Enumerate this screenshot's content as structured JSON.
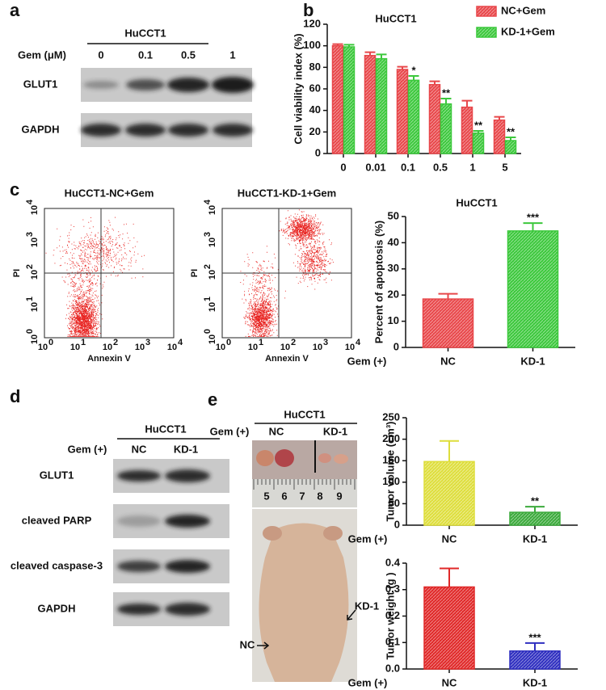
{
  "panel_labels": [
    "a",
    "b",
    "c",
    "d",
    "e"
  ],
  "blot_a": {
    "title": "HuCCT1",
    "treatment": "Gem (μM)",
    "lanes": [
      "0",
      "0.1",
      "0.5",
      "1"
    ],
    "rows": [
      "GLUT1",
      "GAPDH"
    ]
  },
  "flow": [
    {
      "title": "HuCCT1-NC+Gem",
      "xlabel": "Annexin V",
      "ylabel": "PI"
    },
    {
      "title": "HuCCT1-KD-1+Gem",
      "xlabel": "Annexin V",
      "ylabel": "PI"
    }
  ],
  "flow_tick_base": "10",
  "flow_tick_exponents": [
    "0",
    "1",
    "2",
    "3",
    "4"
  ],
  "blot_d": {
    "title": "HuCCT1",
    "treatment": "Gem (+)",
    "lanes": [
      "NC",
      "KD-1"
    ],
    "rows": [
      "GLUT1",
      "cleaved PARP",
      "cleaved caspase-3",
      "GAPDH"
    ]
  },
  "photo_e": {
    "title": "HuCCT1",
    "treatment": "Gem (+)",
    "lanes": [
      "NC",
      "KD-1"
    ],
    "ruler": [
      "5",
      "6",
      "7",
      "8",
      "9"
    ],
    "mouse_labels": [
      "NC",
      "KD-1"
    ]
  },
  "chart_data": [
    {
      "type": "bar",
      "title": "HuCCT1",
      "ylabel": "Cell viability index (%)",
      "categories": [
        "0",
        "0.01",
        "0.1",
        "0.5",
        "1",
        "5"
      ],
      "series": [
        {
          "name": "NC+Gem",
          "color": "#e8474a",
          "values": [
            100,
            91,
            78,
            64,
            43,
            31
          ],
          "errors": [
            1.5,
            3,
            2.5,
            3,
            6,
            3
          ]
        },
        {
          "name": "KD-1+Gem",
          "color": "#3cc83c",
          "values": [
            99,
            88,
            68,
            46,
            19,
            12
          ],
          "errors": [
            2,
            4,
            4,
            5,
            2,
            3
          ],
          "annotations": [
            null,
            null,
            "*",
            "**",
            "**",
            "**"
          ]
        }
      ],
      "ylim": [
        0,
        120
      ],
      "yticks": [
        0,
        20,
        40,
        60,
        80,
        100,
        120
      ]
    },
    {
      "type": "bar",
      "title": "HuCCT1",
      "ylabel": "Percent of apoptosis (%)",
      "group_label": "Gem (+)",
      "categories": [
        "NC",
        "KD-1"
      ],
      "series": [
        {
          "values": [
            18.5,
            44.5
          ],
          "errors": [
            2,
            3
          ],
          "colors": [
            "#e8474a",
            "#3cc83c"
          ],
          "annotations": [
            null,
            "***"
          ]
        }
      ],
      "ylim": [
        0,
        50
      ],
      "yticks": [
        0,
        10,
        20,
        30,
        40,
        50
      ]
    },
    {
      "type": "bar",
      "ylabel": "Tumor volume (cm³)",
      "group_label": "Gem (+)",
      "categories": [
        "NC",
        "KD-1"
      ],
      "series": [
        {
          "values": [
            148,
            30
          ],
          "errors": [
            48,
            13
          ],
          "colors": [
            "#dede3c",
            "#3caa3c"
          ],
          "annotations": [
            null,
            "**"
          ]
        }
      ],
      "ylim": [
        0,
        250
      ],
      "yticks": [
        0,
        50,
        100,
        150,
        200,
        250
      ]
    },
    {
      "type": "bar",
      "ylabel": "Tumor weight (g )",
      "group_label": "Gem (+)",
      "categories": [
        "NC",
        "KD-1"
      ],
      "series": [
        {
          "values": [
            0.31,
            0.068
          ],
          "errors": [
            0.07,
            0.03
          ],
          "colors": [
            "#e02828",
            "#2f2fc0"
          ],
          "annotations": [
            null,
            "***"
          ]
        }
      ],
      "ylim": [
        0,
        0.4
      ],
      "yticks": [
        {
          "value": 0,
          "label": "0.0"
        },
        0.1,
        0.2,
        0.3,
        0.4
      ]
    }
  ]
}
